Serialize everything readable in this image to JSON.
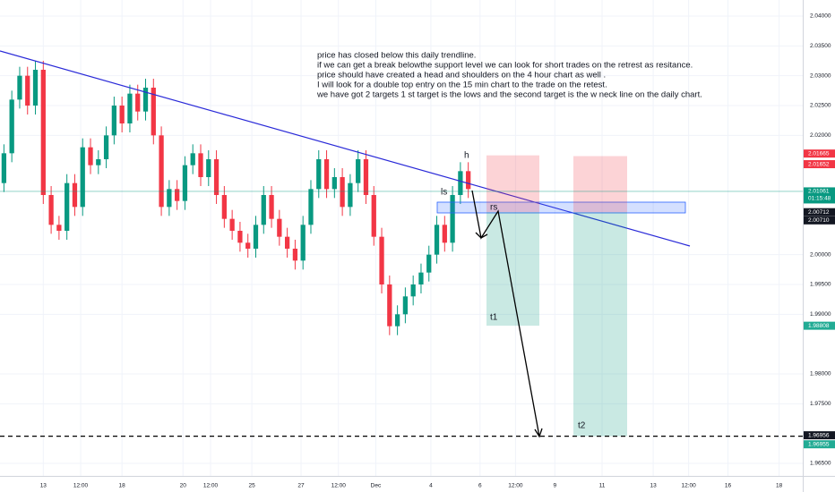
{
  "chart_data": {
    "type": "candlestick",
    "x": [
      0,
      1,
      2,
      3,
      4,
      5,
      6,
      7,
      8,
      9,
      10,
      11,
      12,
      13,
      14,
      15,
      16,
      17,
      18,
      19,
      20,
      21,
      22,
      23,
      24,
      25,
      26,
      27,
      28,
      29,
      30,
      31,
      32,
      33,
      34,
      35,
      36,
      37,
      38,
      39,
      40,
      41,
      42,
      43,
      44,
      45,
      46,
      47,
      48,
      49,
      50,
      51,
      52,
      53,
      54,
      55,
      56,
      57,
      58,
      59
    ],
    "open": [
      2.012,
      2.017,
      2.026,
      2.03,
      2.025,
      2.031,
      2.01,
      2.005,
      2.004,
      2.012,
      2.008,
      2.018,
      2.015,
      2.016,
      2.02,
      2.025,
      2.022,
      2.027,
      2.024,
      2.028,
      2.02,
      2.008,
      2.011,
      2.009,
      2.015,
      2.017,
      2.013,
      2.016,
      2.01,
      2.006,
      2.004,
      2.002,
      2.001,
      2.005,
      2.01,
      2.006,
      2.003,
      2.001,
      1.999,
      2.005,
      2.011,
      2.016,
      2.011,
      2.013,
      2.008,
      2.012,
      2.016,
      2.01,
      2.003,
      1.995,
      1.988,
      1.99,
      1.993,
      1.995,
      1.997,
      2.0,
      2.005,
      2.002,
      2.01,
      2.014
    ],
    "high": [
      2.0185,
      2.0275,
      2.0315,
      2.0315,
      2.0325,
      2.0325,
      2.0115,
      2.0065,
      2.0135,
      2.0135,
      2.0195,
      2.0195,
      2.0175,
      2.0215,
      2.0265,
      2.0265,
      2.0285,
      2.0285,
      2.0295,
      2.0295,
      2.0215,
      2.0125,
      2.0125,
      2.0165,
      2.0185,
      2.0185,
      2.0175,
      2.0175,
      2.0115,
      2.0075,
      2.0055,
      2.0035,
      2.0065,
      2.0115,
      2.0115,
      2.0075,
      2.0045,
      2.0025,
      2.0065,
      2.0125,
      2.0175,
      2.0175,
      2.0145,
      2.0145,
      2.0135,
      2.0175,
      2.0175,
      2.0115,
      2.0045,
      1.9965,
      1.9915,
      1.9945,
      1.9965,
      1.9985,
      2.0015,
      2.0065,
      2.0065,
      2.0115,
      2.0155,
      2.0155
    ],
    "low": [
      2.0105,
      2.0155,
      2.0245,
      2.0235,
      2.0235,
      2.0085,
      2.0035,
      2.0025,
      2.0025,
      2.0065,
      2.0065,
      2.0135,
      2.0135,
      2.0145,
      2.0185,
      2.0205,
      2.0205,
      2.0225,
      2.0225,
      2.0185,
      2.0065,
      2.0065,
      2.0075,
      2.0075,
      2.0135,
      2.0115,
      2.0115,
      2.0085,
      2.0045,
      2.0025,
      2.0005,
      1.9995,
      1.9995,
      2.0035,
      2.0045,
      2.0015,
      1.9995,
      1.9975,
      1.9975,
      2.0035,
      2.0095,
      2.0095,
      2.0095,
      2.0065,
      2.0065,
      2.0105,
      2.0085,
      2.0015,
      1.9935,
      1.9865,
      1.9865,
      1.9885,
      1.9915,
      1.9935,
      1.9955,
      1.9985,
      2.0005,
      2.0005,
      2.0085,
      2.0095
    ],
    "close": [
      2.017,
      2.026,
      2.03,
      2.025,
      2.031,
      2.01,
      2.005,
      2.004,
      2.012,
      2.008,
      2.018,
      2.015,
      2.016,
      2.02,
      2.025,
      2.022,
      2.027,
      2.024,
      2.028,
      2.02,
      2.008,
      2.011,
      2.009,
      2.015,
      2.017,
      2.013,
      2.016,
      2.01,
      2.006,
      2.004,
      2.002,
      2.001,
      2.005,
      2.01,
      2.006,
      2.003,
      2.001,
      1.999,
      2.005,
      2.011,
      2.016,
      2.011,
      2.013,
      2.008,
      2.012,
      2.016,
      2.01,
      2.003,
      1.995,
      1.988,
      1.99,
      1.993,
      1.995,
      1.997,
      2.0,
      2.005,
      2.002,
      2.01,
      2.014,
      2.011
    ],
    "up_color": "#089981",
    "down_color": "#f23645",
    "xlim": [
      -0.5,
      101.5
    ],
    "ylim": [
      1.9629,
      2.0427
    ],
    "xticks": [
      {
        "value": 5,
        "label": "13"
      },
      {
        "value": 9.75,
        "label": "12:00"
      },
      {
        "value": 15,
        "label": "18"
      },
      {
        "value": 22.75,
        "label": "20"
      },
      {
        "value": 26.25,
        "label": "12:00"
      },
      {
        "value": 31.5,
        "label": "25"
      },
      {
        "value": 37.75,
        "label": "27"
      },
      {
        "value": 42.5,
        "label": "12:00"
      },
      {
        "value": 47.25,
        "label": "Dec"
      },
      {
        "value": 54.25,
        "label": "4"
      },
      {
        "value": 60.5,
        "label": "6"
      },
      {
        "value": 65,
        "label": "12:00"
      },
      {
        "value": 70,
        "label": "9"
      },
      {
        "value": 76,
        "label": "11"
      },
      {
        "value": 82.5,
        "label": "13"
      },
      {
        "value": 87,
        "label": "12:00"
      },
      {
        "value": 92,
        "label": "16"
      },
      {
        "value": 98.5,
        "label": "18"
      }
    ],
    "yticks": [
      {
        "value": 2.04,
        "label": "2.04000"
      },
      {
        "value": 2.035,
        "label": "2.03500"
      },
      {
        "value": 2.03,
        "label": "2.03000"
      },
      {
        "value": 2.025,
        "label": "2.02500"
      },
      {
        "value": 2.02,
        "label": "2.02000"
      },
      {
        "value": 2.0,
        "label": "2.00000"
      },
      {
        "value": 1.995,
        "label": "1.99500"
      },
      {
        "value": 1.99,
        "label": "1.99000"
      },
      {
        "value": 1.98,
        "label": "1.98000"
      },
      {
        "value": 1.975,
        "label": "1.97500"
      },
      {
        "value": 1.965,
        "label": "1.96500"
      }
    ],
    "grid": true,
    "price_labels": [
      {
        "value": 2.01665,
        "color": "#f23645"
      },
      {
        "value": 2.01652,
        "color": "#f23645"
      },
      {
        "value": 2.01061,
        "color": "#089981",
        "countdown": "01:15:48"
      },
      {
        "value": 2.00712,
        "color": "#131722"
      },
      {
        "value": 2.0071,
        "label": "2.00710",
        "color": "#131722"
      },
      {
        "value": 1.98808,
        "color": "#22ab94"
      },
      {
        "value": 1.96956,
        "color": "#131722"
      },
      {
        "value": 1.96955,
        "color": "#22ab94"
      }
    ],
    "annotations": {
      "h": "h",
      "ls": "ls",
      "rs": "rs",
      "t1": "t1",
      "t2": "t2",
      "note": [
        "price has closed below this daily trendline.",
        "if we can get a break belowthe support level we can look for short trades on the retrest as resitance.",
        "price should have created a head and shoulders on the 4 hour chart as well .",
        "I will look for a double top entry on the 15 min chart to the trade on the retest.",
        "we have got 2 targets 1 st target is the lows and the second target is the w neck line on the daily chart."
      ]
    }
  }
}
